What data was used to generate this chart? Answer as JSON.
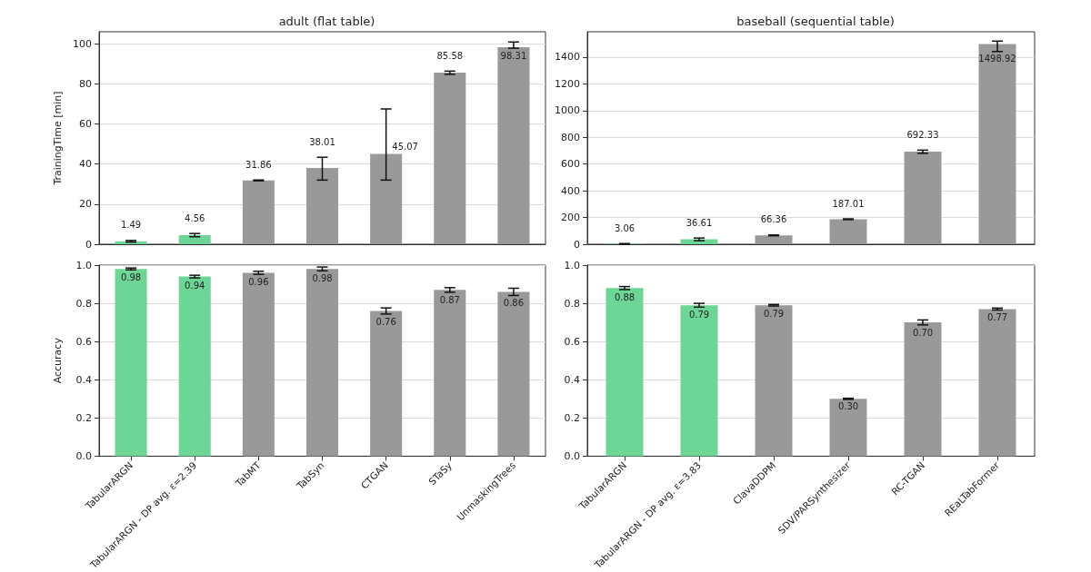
{
  "chart_data": [
    {
      "type": "bar",
      "title": "adult (flat table)",
      "ylabel": "TrainingTime [min]",
      "categories": [
        null,
        null,
        null,
        null,
        null,
        null,
        null
      ],
      "values": [
        1.49,
        4.56,
        31.86,
        38.01,
        45.07,
        85.58,
        98.31
      ],
      "colors": [
        "#6dd595",
        "#6dd595",
        "#999999",
        "#999999",
        "#999999",
        "#999999",
        "#999999"
      ],
      "errors": [
        0.4,
        0.8,
        0.2,
        [
          32.0,
          43.4
        ],
        [
          32.0,
          67.5
        ],
        0.8,
        [
          97.8,
          100.9
        ]
      ],
      "ylim": [
        0,
        106
      ],
      "yticks": [
        0,
        20,
        40,
        60,
        80,
        100
      ],
      "grid": "y",
      "data_labels": true,
      "tick_labels": "y"
    },
    {
      "type": "bar",
      "title": "baseball (sequential table)",
      "categories": [
        null,
        null,
        null,
        null,
        null,
        null
      ],
      "values": [
        3.06,
        36.61,
        66.36,
        187.01,
        692.33,
        1498.92
      ],
      "colors": [
        "#6dd595",
        "#6dd595",
        "#999999",
        "#999999",
        "#999999",
        "#999999"
      ],
      "errors": [
        2,
        10,
        3,
        3,
        12,
        [
          1442,
          1520
        ]
      ],
      "ylim": [
        0,
        1590
      ],
      "yticks": [
        0,
        200,
        400,
        600,
        800,
        1000,
        1200,
        1400
      ],
      "grid": "y",
      "data_labels": true,
      "tick_labels": "y"
    },
    {
      "type": "bar",
      "ylabel": "Accuracy",
      "categories": [
        "TabularARGN",
        "TabularARGN - DP avg. ε=2.39",
        "TabMT",
        "TabSyn",
        "CTGAN",
        "STaSy",
        "UnmaskingTrees"
      ],
      "values": [
        0.98,
        0.94,
        0.96,
        0.98,
        0.76,
        0.87,
        0.86
      ],
      "colors": [
        "#6dd595",
        "#6dd595",
        "#999999",
        "#999999",
        "#999999",
        "#999999",
        "#999999"
      ],
      "errors": [
        0.005,
        0.007,
        0.008,
        0.01,
        0.016,
        0.012,
        0.019
      ],
      "ylim": [
        0,
        1
      ],
      "yticks": [
        {
          "value": 0,
          "label": "0.0"
        },
        {
          "value": 0.2,
          "label": "0.2"
        },
        {
          "value": 0.4,
          "label": "0.4"
        },
        {
          "value": 0.6,
          "label": "0.6"
        },
        {
          "value": 0.8,
          "label": "0.8"
        },
        {
          "value": 1,
          "label": "1.0"
        }
      ],
      "grid": "y",
      "data_labels": true
    },
    {
      "type": "bar",
      "categories": [
        "TabularARGN",
        "TabularARGN - DP avg. ε=3.83",
        "ClavaDDPM",
        "SDV/PARSynthesizer",
        "RC-TGAN",
        "REaLTabFormer"
      ],
      "values": [
        0.88,
        0.79,
        0.79,
        0.3,
        0.7,
        0.77
      ],
      "value_labels": [
        "0.88",
        "0.79",
        "0.79",
        "0.30",
        "0.70",
        "0.77"
      ],
      "colors": [
        "#6dd595",
        "#6dd595",
        "#999999",
        "#999999",
        "#999999",
        "#999999"
      ],
      "errors": [
        0.008,
        0.01,
        0.004,
        0.003,
        0.013,
        0.005
      ],
      "ylim": [
        0,
        1
      ],
      "yticks": [
        {
          "value": 0,
          "label": "0.0"
        },
        {
          "value": 0.2,
          "label": "0.2"
        },
        {
          "value": 0.4,
          "label": "0.4"
        },
        {
          "value": 0.6,
          "label": "0.6"
        },
        {
          "value": 0.8,
          "label": "0.8"
        },
        {
          "value": 1,
          "label": "1.0"
        }
      ],
      "grid": "y"
    }
  ]
}
